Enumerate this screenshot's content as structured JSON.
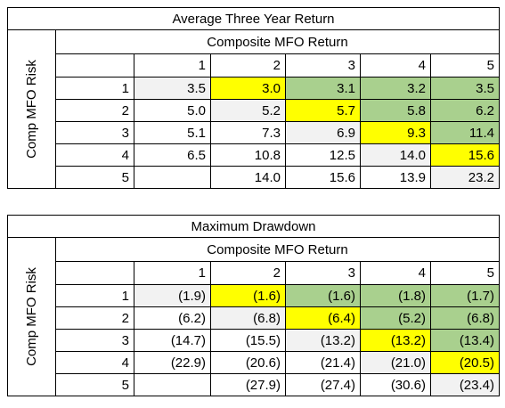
{
  "tables": [
    {
      "title": "Average Three Year Return",
      "column_group": "Composite MFO Return",
      "row_group": "Comp MFO Risk",
      "columns": [
        "1",
        "2",
        "3",
        "4",
        "5"
      ],
      "rows": [
        {
          "label": "1",
          "cells": [
            "3.5",
            "3.0",
            "3.1",
            "3.2",
            "3.5"
          ]
        },
        {
          "label": "2",
          "cells": [
            "5.0",
            "5.2",
            "5.7",
            "5.8",
            "6.2"
          ]
        },
        {
          "label": "3",
          "cells": [
            "5.1",
            "7.3",
            "6.9",
            "9.3",
            "11.4"
          ]
        },
        {
          "label": "4",
          "cells": [
            "6.5",
            "10.8",
            "12.5",
            "14.0",
            "15.6"
          ]
        },
        {
          "label": "5",
          "cells": [
            null,
            "14.0",
            "15.6",
            "13.9",
            "23.2"
          ]
        }
      ]
    },
    {
      "title": "Maximum Drawdown",
      "column_group": "Composite MFO Return",
      "row_group": "Comp MFO Risk",
      "columns": [
        "1",
        "2",
        "3",
        "4",
        "5"
      ],
      "rows": [
        {
          "label": "1",
          "cells": [
            "(1.9)",
            "(1.6)",
            "(1.6)",
            "(1.8)",
            "(1.7)"
          ]
        },
        {
          "label": "2",
          "cells": [
            "(6.2)",
            "(6.8)",
            "(6.4)",
            "(5.2)",
            "(6.8)"
          ]
        },
        {
          "label": "3",
          "cells": [
            "(14.7)",
            "(15.5)",
            "(13.2)",
            "(13.2)",
            "(13.4)"
          ]
        },
        {
          "label": "4",
          "cells": [
            "(22.9)",
            "(20.6)",
            "(21.4)",
            "(21.0)",
            "(20.5)"
          ]
        },
        {
          "label": "5",
          "cells": [
            null,
            "(27.9)",
            "(27.4)",
            "(30.6)",
            "(23.4)"
          ]
        }
      ]
    }
  ]
}
